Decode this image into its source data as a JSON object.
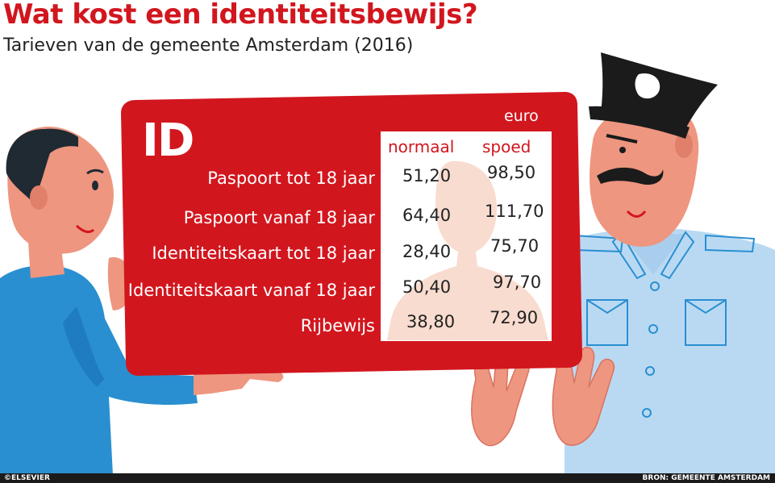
{
  "title": "Wat kost een identiteitsbewijs?",
  "subtitle": "Tarieven van de gemeente Amsterdam (2016)",
  "card": {
    "id_label": "ID",
    "currency": "euro",
    "columns": [
      "normaal",
      "spoed"
    ],
    "rows": [
      {
        "label": "Paspoort tot 18 jaar",
        "normaal": "51,20",
        "spoed": "98,50"
      },
      {
        "label": "Paspoort vanaf 18 jaar",
        "normaal": "64,40",
        "spoed": "111,70"
      },
      {
        "label": "Identiteitskaart tot 18 jaar",
        "normaal": "28,40",
        "spoed": "75,70"
      },
      {
        "label": "Identiteitskaart vanaf 18 jaar",
        "normaal": "50,40",
        "spoed": "97,70"
      },
      {
        "label": "Rijbewijs",
        "normaal": "38,80",
        "spoed": "72,90"
      }
    ]
  },
  "footer": {
    "credit": "©ELSEVIER",
    "source": "BRON: GEMEENTE AMSTERDAM"
  },
  "colors": {
    "red": "#d2161e",
    "skin": "#ee9680",
    "shirt_left": "#2a8fd0",
    "police_shirt": "#b9d9f3",
    "dark": "#1b1b1b"
  }
}
